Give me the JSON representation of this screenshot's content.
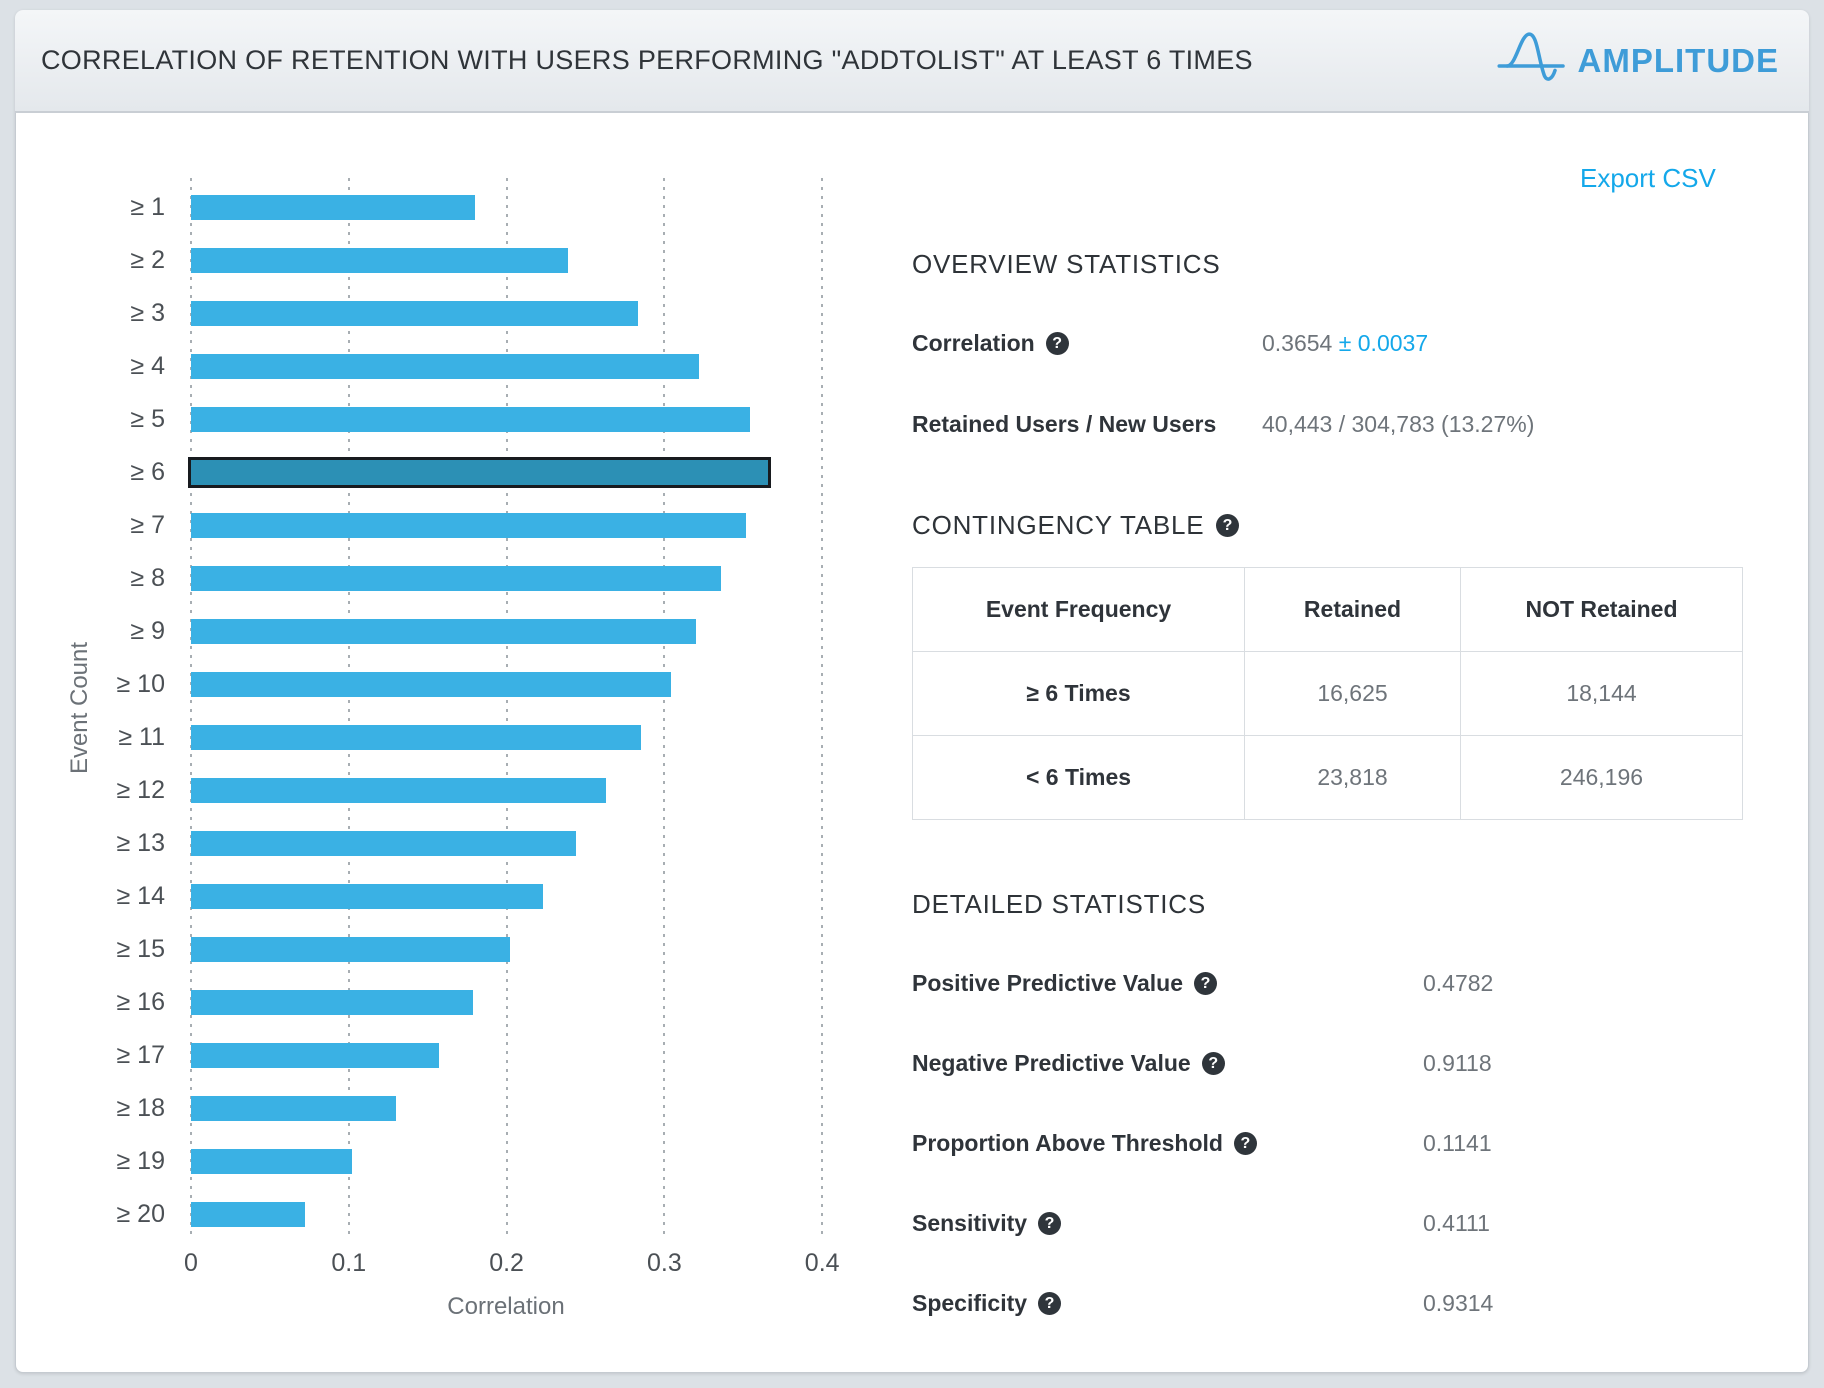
{
  "header": {
    "title": "CORRELATION OF RETENTION WITH USERS PERFORMING \"ADDTOLIST\" AT LEAST 6 TIMES",
    "brand": "AMPLITUDE"
  },
  "toolbar": {
    "export_csv": "Export CSV"
  },
  "icons": {
    "help": "?"
  },
  "colors": {
    "bar": "#3ab1e4",
    "bar_highlight": "#2c90b5",
    "bar_highlight_border": "#181b1f",
    "accent_blue": "#14a8ea",
    "brand_blue": "#3e9cd8"
  },
  "chart_data": {
    "type": "bar",
    "orientation": "horizontal",
    "title": "Correlation of retention by event-count threshold",
    "categories": [
      "≥ 1",
      "≥ 2",
      "≥ 3",
      "≥ 4",
      "≥ 5",
      "≥ 6",
      "≥ 7",
      "≥ 8",
      "≥ 9",
      "≥ 10",
      "≥ 11",
      "≥ 12",
      "≥ 13",
      "≥ 14",
      "≥ 15",
      "≥ 16",
      "≥ 17",
      "≥ 18",
      "≥ 19",
      "≥ 20"
    ],
    "values": [
      0.18,
      0.239,
      0.283,
      0.322,
      0.354,
      0.3654,
      0.352,
      0.336,
      0.32,
      0.304,
      0.285,
      0.263,
      0.244,
      0.223,
      0.202,
      0.179,
      0.157,
      0.13,
      0.102,
      0.072
    ],
    "highlight_index": 5,
    "xlabel": "Correlation",
    "ylabel": "Event Count",
    "xlim": [
      0,
      0.4
    ],
    "xticks": [
      0,
      0.1,
      0.2,
      0.3,
      0.4
    ],
    "xtick_labels": [
      "0",
      "0.1",
      "0.2",
      "0.3",
      "0.4"
    ],
    "grid": true,
    "legend": false
  },
  "overview": {
    "heading": "OVERVIEW STATISTICS",
    "correlation_label": "Correlation",
    "correlation_value": "0.3654",
    "correlation_extra": "± 0.0037",
    "retained_label": "Retained Users / New Users",
    "retained_value": "40,443 / 304,783 (13.27%)"
  },
  "contingency": {
    "heading": "CONTINGENCY TABLE",
    "columns": [
      "Event Frequency",
      "Retained",
      "NOT Retained"
    ],
    "rows": [
      {
        "label": "≥ 6 Times",
        "retained": "16,625",
        "not_retained": "18,144"
      },
      {
        "label": "< 6 Times",
        "retained": "23,818",
        "not_retained": "246,196"
      }
    ]
  },
  "detailed": {
    "heading": "DETAILED STATISTICS",
    "rows": [
      {
        "label": "Positive Predictive Value",
        "value": "0.4782"
      },
      {
        "label": "Negative Predictive Value",
        "value": "0.9118"
      },
      {
        "label": "Proportion Above Threshold",
        "value": "0.1141"
      },
      {
        "label": "Sensitivity",
        "value": "0.4111"
      },
      {
        "label": "Specificity",
        "value": "0.9314"
      }
    ]
  }
}
